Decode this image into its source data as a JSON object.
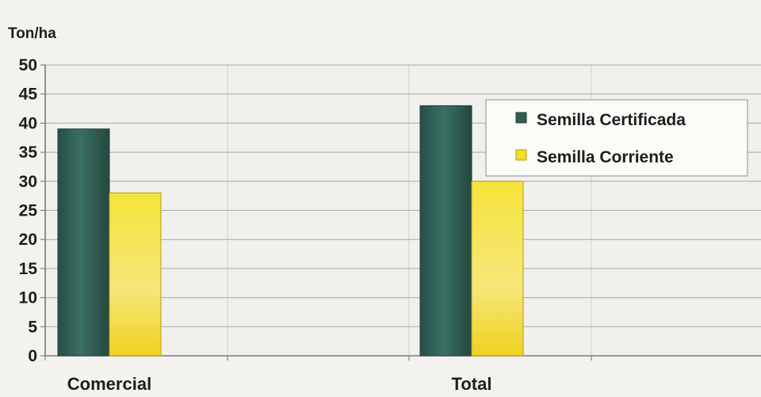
{
  "chart_data": {
    "type": "bar",
    "title": "",
    "xlabel": "",
    "ylabel": "Ton/ha",
    "categories": [
      "Comercial",
      "Total"
    ],
    "series": [
      {
        "name": "Semilla Certificada",
        "values": [
          39,
          43
        ],
        "color": "#2f5e55"
      },
      {
        "name": "Semilla Corriente",
        "values": [
          28,
          30
        ],
        "color": "#f1dc2a"
      }
    ],
    "ylim": [
      0,
      50
    ],
    "yticks": [
      0,
      5,
      10,
      15,
      20,
      25,
      30,
      35,
      40,
      45,
      50
    ],
    "grid": true,
    "legend_position": "top-right"
  }
}
